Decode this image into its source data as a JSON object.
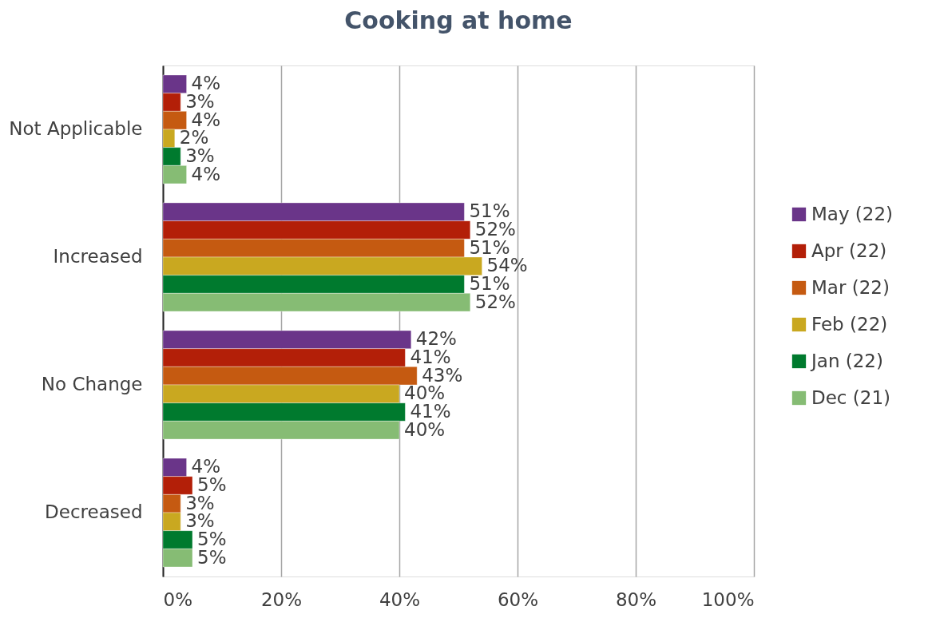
{
  "chart_data": {
    "type": "bar",
    "orientation": "horizontal",
    "title": "Cooking at home",
    "categories": [
      "Not Applicable",
      "Increased",
      "No Change",
      "Decreased"
    ],
    "series": [
      {
        "name": "May (22)",
        "color": "#6a3589",
        "values": [
          4,
          51,
          42,
          4
        ],
        "value_labels": [
          "4%",
          "51%",
          "42%",
          "4%"
        ]
      },
      {
        "name": "Apr (22)",
        "color": "#b31f08",
        "values": [
          3,
          52,
          41,
          5
        ],
        "value_labels": [
          "3%",
          "52%",
          "41%",
          "5%"
        ]
      },
      {
        "name": "Mar (22)",
        "color": "#c55a11",
        "values": [
          4,
          51,
          43,
          3
        ],
        "value_labels": [
          "4%",
          "51%",
          "43%",
          "3%"
        ]
      },
      {
        "name": "Feb (22)",
        "color": "#c9a820",
        "values": [
          2,
          54,
          40,
          3
        ],
        "value_labels": [
          "2%",
          "54%",
          "40%",
          "3%"
        ]
      },
      {
        "name": "Jan (22)",
        "color": "#007a2e",
        "values": [
          3,
          51,
          41,
          5
        ],
        "value_labels": [
          "3%",
          "51%",
          "41%",
          "5%"
        ]
      },
      {
        "name": "Dec (21)",
        "color": "#86bc74",
        "values": [
          4,
          52,
          40,
          5
        ],
        "value_labels": [
          "4%",
          "52%",
          "40%",
          "5%"
        ]
      }
    ],
    "xlim": [
      0,
      100
    ],
    "xticks": [
      {
        "value": 0,
        "label": "0%"
      },
      {
        "value": 20,
        "label": "20%"
      },
      {
        "value": 40,
        "label": "40%"
      },
      {
        "value": 60,
        "label": "60%"
      },
      {
        "value": 80,
        "label": "80%"
      },
      {
        "value": 100,
        "label": "100%"
      }
    ],
    "grid": "x",
    "legend": "right"
  }
}
